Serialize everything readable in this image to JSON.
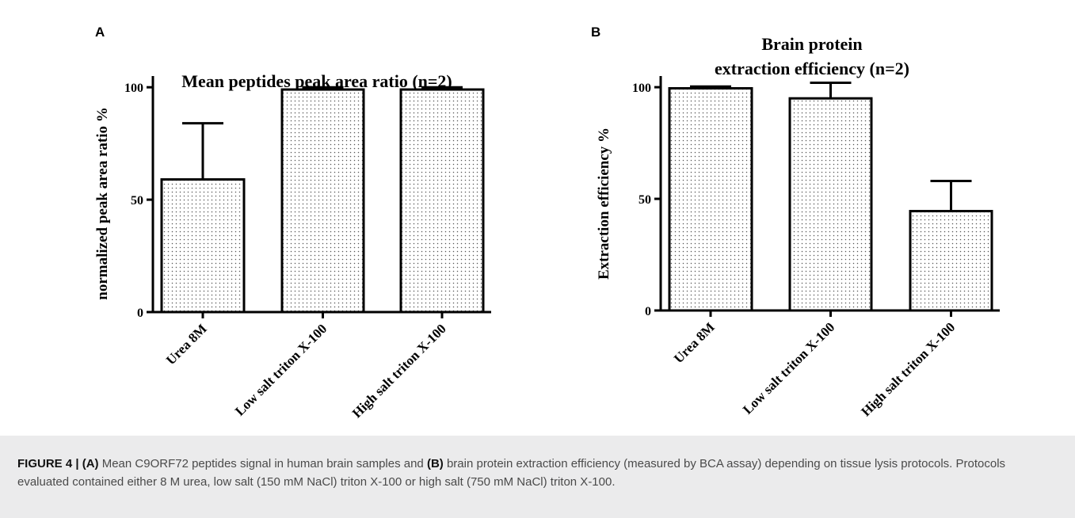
{
  "chart_data": [
    {
      "panel": "A",
      "type": "bar",
      "title": "Mean peptides peak area ratio (n=2)",
      "ylabel": "normalized peak area ratio  %",
      "xlabel": "",
      "categories": [
        "Urea 8M",
        "Low salt triton X-100",
        "High salt triton X-100"
      ],
      "values": [
        59,
        99,
        99
      ],
      "error_plus": [
        25,
        1,
        1
      ],
      "ylim": [
        0,
        105
      ],
      "yticks": [
        "0",
        "50",
        "100"
      ],
      "grid": false,
      "bar_fill": "dotted"
    },
    {
      "panel": "B",
      "type": "bar",
      "title": "Brain protein\nextraction efficiency (n=2)",
      "title_lines": [
        "Brain protein",
        "extraction efficiency (n=2)"
      ],
      "ylabel": "Extraction efficiency %",
      "xlabel": "",
      "categories": [
        "Urea 8M",
        "Low salt triton X-100",
        "High salt triton X-100"
      ],
      "values": [
        99.5,
        95,
        44.5
      ],
      "error_plus": [
        0.8,
        7,
        13.5
      ],
      "ylim": [
        0,
        105
      ],
      "yticks": [
        "0",
        "50",
        "100"
      ],
      "grid": false,
      "bar_fill": "dotted"
    }
  ],
  "caption": {
    "label": "FIGURE 4 |",
    "a_marker": "(A)",
    "part_a": " Mean C9ORF72 peptides signal in human brain samples and ",
    "b_marker": "(B)",
    "part_b": " brain protein extraction efficiency (measured by BCA assay) depending on tissue lysis protocols. Protocols evaluated contained either 8 M urea, low salt (150 mM NaCl) triton X-100 or high salt (750 mM NaCl) triton X-100."
  },
  "colors": {
    "bar_outline": "#000000",
    "bar_dots": "#555555",
    "caption_background": "#ebebec"
  }
}
